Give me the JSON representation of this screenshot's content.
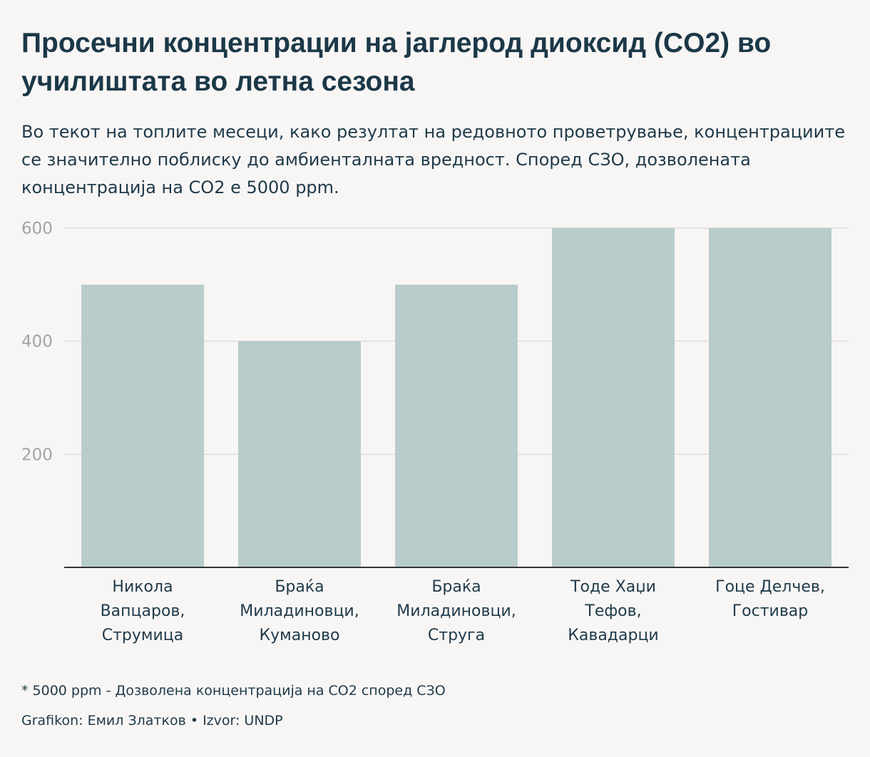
{
  "title": "Просечни концентрации на јаглерод диоксид (CO2) во училиштата во летна сезона",
  "subtitle": "Во текот на топлите месеци, како резултат на редовното проветрување, концентрациите се значително поблиску до амбиенталната вредност. Според СЗО, дозволената концентрација на CO2 е 5000 ppm.",
  "note": "* 5000 ppm - Дозволена концентрација на CO2 според СЗО",
  "credit": "Grafikon: Емил Златков • Izvor: UNDP",
  "colors": {
    "bar": "#b8cccb",
    "grid": "#dedcdb",
    "axis": "#333333",
    "tick": "#a3a3a3",
    "text": "#1f3a4a"
  },
  "chart_data": {
    "type": "bar",
    "title": "Просечни концентрации на јаглерод диоксид (CO2) во училиштата во летна сезона",
    "categories": [
      [
        "Никола",
        "Вапцаров,",
        "Струмица"
      ],
      [
        "Браќа",
        "Миладиновци,",
        "Куманово"
      ],
      [
        "Браќа",
        "Миладиновци,",
        "Струга"
      ],
      [
        "Тоде Хаџи",
        "Тефов,",
        "Кавадарци"
      ],
      [
        "Гоце Делчев,",
        "Гостивар"
      ]
    ],
    "values": [
      500,
      400,
      500,
      600,
      600
    ],
    "yticks": [
      200,
      400,
      600
    ],
    "ylim": [
      0,
      600
    ],
    "grid": true,
    "xlabel": "",
    "ylabel": ""
  }
}
